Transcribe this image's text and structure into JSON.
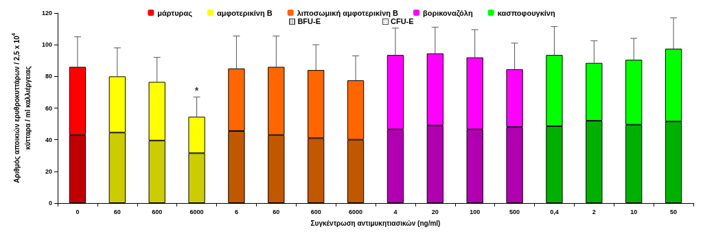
{
  "chart_data": {
    "type": "bar",
    "stacked": true,
    "ylabel": "Αριθμός αποικιών ερυθροκυττάρων / 2,5 x 10$^{4}$\nκύτταρα / ml καλλιέργειας",
    "xlabel": "Συγκέντρωση αντιμυκητιασικών (ng/ml)",
    "categories": [
      "0",
      "60",
      "600",
      "6000",
      "6",
      "60",
      "600",
      "6000",
      "4",
      "20",
      "100",
      "500",
      "0,4",
      "2",
      "10",
      "50"
    ],
    "series": [
      {
        "color": "#c00000",
        "values": [
          43,
          null,
          null,
          null,
          null,
          null,
          null,
          null,
          null,
          null,
          null,
          null,
          null,
          null,
          null,
          null
        ]
      },
      {
        "name": "μάρτυρας",
        "color": "#ff0000",
        "values": [
          43,
          null,
          null,
          null,
          null,
          null,
          null,
          null,
          null,
          null,
          null,
          null,
          null,
          null,
          null,
          null
        ],
        "errors": [
          [
            86,
            105
          ],
          null,
          null,
          null,
          null,
          null,
          null,
          null,
          null,
          null,
          null,
          null,
          null,
          null,
          null,
          null
        ]
      },
      {
        "color": "#cccc00",
        "values": [
          null,
          44.5,
          39.5,
          31.5,
          null,
          null,
          null,
          null,
          null,
          null,
          null,
          null,
          null,
          null,
          null,
          null
        ]
      },
      {
        "name": "αμφοτερικίνη Β",
        "color": "#ffff00",
        "values": [
          null,
          35.5,
          37,
          23,
          null,
          null,
          null,
          null,
          null,
          null,
          null,
          null,
          null,
          null,
          null,
          null
        ],
        "errors": [
          null,
          [
            80,
            98
          ],
          [
            76.5,
            92
          ],
          [
            54.5,
            67
          ],
          null,
          null,
          null,
          null,
          null,
          null,
          null,
          null,
          null,
          null,
          null,
          null
        ]
      },
      {
        "color": "#c05800",
        "values": [
          null,
          null,
          null,
          null,
          45.5,
          43,
          41,
          40,
          null,
          null,
          null,
          null,
          null,
          null,
          null,
          null
        ]
      },
      {
        "name": "λιποσωμική αμφοτερικίνη Β",
        "color": "#ff6600",
        "values": [
          null,
          null,
          null,
          null,
          39.5,
          43,
          43,
          37.5,
          null,
          null,
          null,
          null,
          null,
          null,
          null,
          null
        ],
        "errors": [
          null,
          null,
          null,
          null,
          [
            85,
            105.5
          ],
          [
            86,
            105.5
          ],
          [
            84,
            100
          ],
          [
            77.5,
            93
          ],
          null,
          null,
          null,
          null,
          null,
          null,
          null,
          null
        ]
      },
      {
        "color": "#b000b0",
        "values": [
          null,
          null,
          null,
          null,
          null,
          null,
          null,
          null,
          46.5,
          49,
          46.5,
          48,
          null,
          null,
          null,
          null
        ]
      },
      {
        "name": "βορικοναζόλη",
        "color": "#ff00ff",
        "values": [
          null,
          null,
          null,
          null,
          null,
          null,
          null,
          null,
          47,
          45.5,
          45.5,
          36.5,
          null,
          null,
          null,
          null
        ],
        "errors": [
          null,
          null,
          null,
          null,
          null,
          null,
          null,
          null,
          [
            93.5,
            110.5
          ],
          [
            94.5,
            111
          ],
          [
            92,
            109.5
          ],
          [
            84.5,
            101
          ],
          null,
          null,
          null,
          null
        ]
      },
      {
        "color": "#00b000",
        "values": [
          null,
          null,
          null,
          null,
          null,
          null,
          null,
          null,
          null,
          null,
          null,
          null,
          48.5,
          52,
          49.5,
          51.5
        ]
      },
      {
        "name": "κασποφουγκίνη",
        "color": "#00ff00",
        "values": [
          null,
          null,
          null,
          null,
          null,
          null,
          null,
          null,
          null,
          null,
          null,
          null,
          45,
          36.5,
          41,
          46
        ],
        "errors": [
          null,
          null,
          null,
          null,
          null,
          null,
          null,
          null,
          null,
          null,
          null,
          null,
          [
            93.5,
            111.5
          ],
          [
            88.5,
            102.5
          ],
          [
            90.5,
            104
          ],
          [
            97.5,
            117
          ]
        ]
      }
    ],
    "annotations": [
      "BFU-E",
      "CFU-E",
      {
        "text": "*",
        "x": "6000",
        "y": 67
      }
    ],
    "ylim": [
      0,
      120
    ],
    "yticks": [
      0,
      20,
      40,
      60,
      80,
      100,
      120
    ],
    "grid": false,
    "legend": "top"
  }
}
